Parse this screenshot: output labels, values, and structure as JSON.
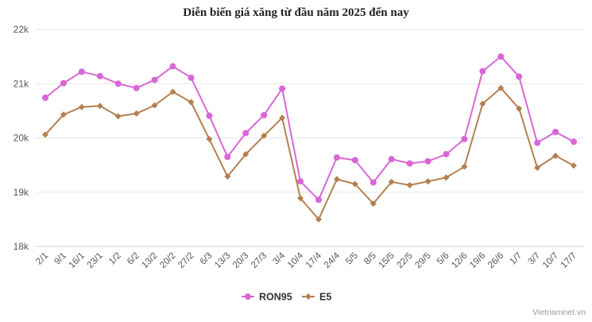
{
  "chart_data": {
    "type": "line",
    "title": "Diễn biến giá xăng từ đầu năm 2025 đến nay",
    "categories": [
      "2/1",
      "9/1",
      "16/1",
      "23/1",
      "1/2",
      "6/2",
      "13/2",
      "20/2",
      "27/2",
      "6/3",
      "13/3",
      "20/3",
      "27/3",
      "3/4",
      "10/4",
      "17/4",
      "24/4",
      "5/5",
      "8/5",
      "15/5",
      "22/5",
      "29/5",
      "5/6",
      "12/6",
      "19/6",
      "26/6",
      "1/7",
      "3/7",
      "10/7",
      "17/7"
    ],
    "series": [
      {
        "name": "RON95",
        "color": "#d966d6",
        "values": [
          20740,
          21010,
          21220,
          21140,
          21000,
          20920,
          21070,
          21320,
          21110,
          20410,
          19650,
          20090,
          20420,
          20910,
          19200,
          18860,
          19640,
          19590,
          19180,
          19610,
          19530,
          19570,
          19700,
          19980,
          21230,
          21500,
          21130,
          19910,
          20110,
          19930
        ]
      },
      {
        "name": "E5",
        "color": "#b5804f",
        "values": [
          20060,
          20430,
          20570,
          20590,
          20400,
          20450,
          20600,
          20850,
          20660,
          19980,
          19290,
          19700,
          20040,
          20370,
          18890,
          18500,
          19240,
          19150,
          18790,
          19190,
          19130,
          19200,
          19270,
          19470,
          20630,
          20920,
          20540,
          19450,
          19670,
          19490
        ]
      }
    ],
    "y_tick_labels": [
      "18k",
      "19k",
      "20k",
      "21k",
      "22k"
    ],
    "ylim": [
      18000,
      22000
    ],
    "xlabel": "",
    "ylabel": "",
    "grid": true,
    "legend": "bottom-center"
  },
  "credit": "Vietnamnet.vn"
}
